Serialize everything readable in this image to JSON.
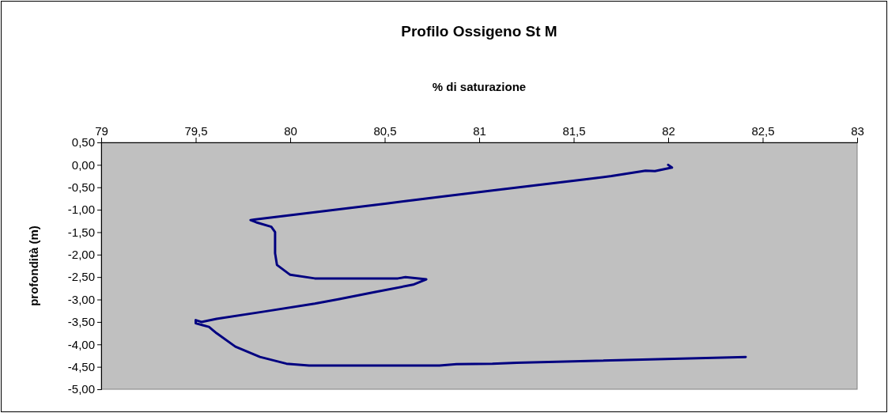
{
  "chart_data": {
    "type": "line",
    "title": "Profilo Ossigeno St M",
    "xlabel": "% di saturazione",
    "ylabel": "profondità (m)",
    "x": [
      82.0,
      82.02,
      81.93,
      81.88,
      81.7,
      81.55,
      81.07,
      80.82,
      80.51,
      79.81,
      79.79,
      79.82,
      79.9,
      79.92,
      79.92,
      79.93,
      80.0,
      80.13,
      80.57,
      80.61,
      80.72,
      80.65,
      80.44,
      80.26,
      80.13,
      79.86,
      79.61,
      79.53,
      79.5,
      79.5,
      79.57,
      79.61,
      79.71,
      79.84,
      79.98,
      80.1,
      80.79,
      80.88,
      81.07,
      81.2,
      82.41
    ],
    "series": [
      {
        "color": "#000080",
        "values": [
          0.0,
          -0.06,
          -0.14,
          -0.13,
          -0.25,
          -0.33,
          -0.57,
          -0.7,
          -0.86,
          -1.22,
          -1.23,
          -1.28,
          -1.38,
          -1.5,
          -1.97,
          -2.23,
          -2.45,
          -2.53,
          -2.53,
          -2.5,
          -2.55,
          -2.67,
          -2.84,
          -2.99,
          -3.09,
          -3.27,
          -3.43,
          -3.5,
          -3.46,
          -3.53,
          -3.61,
          -3.75,
          -4.05,
          -4.28,
          -4.43,
          -4.47,
          -4.47,
          -4.44,
          -4.43,
          -4.41,
          -4.28
        ]
      }
    ],
    "xlim": [
      79,
      83
    ],
    "xticks": [
      79,
      {
        "value": 79.5,
        "label": "79,5"
      },
      80,
      {
        "value": 80.5,
        "label": "80,5"
      },
      81,
      {
        "value": 81.5,
        "label": "81,5"
      },
      82,
      {
        "value": 82.5,
        "label": "82,5"
      },
      83
    ],
    "ylim": [
      -5,
      0.5
    ],
    "yticks": [
      {
        "value": 0.5,
        "label": "0,50"
      },
      {
        "value": 0,
        "label": "0,00"
      },
      {
        "value": -0.5,
        "label": "-0,50"
      },
      {
        "value": -1,
        "label": "-1,00"
      },
      {
        "value": -1.5,
        "label": "-1,50"
      },
      {
        "value": -2,
        "label": "-2,00"
      },
      {
        "value": -2.5,
        "label": "-2,50"
      },
      {
        "value": -3,
        "label": "-3,00"
      },
      {
        "value": -3.5,
        "label": "-3,50"
      },
      {
        "value": -4,
        "label": "-4,00"
      },
      {
        "value": -4.5,
        "label": "-4,50"
      },
      {
        "value": -5,
        "label": "-5,00"
      }
    ],
    "grid": false,
    "marker": "none",
    "line_style": "solid"
  }
}
